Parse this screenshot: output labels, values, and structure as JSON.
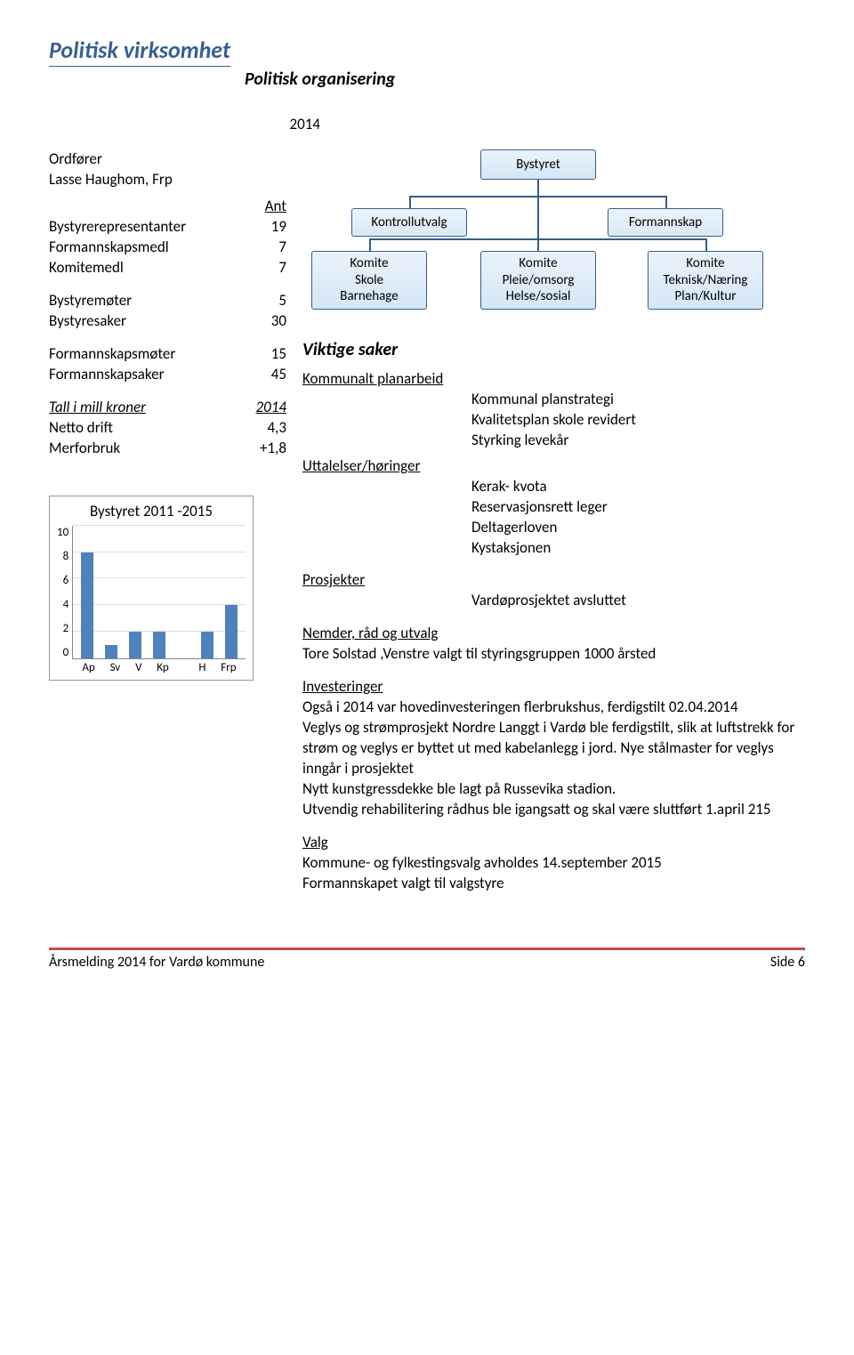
{
  "page": {
    "title": "Politisk virksomhet",
    "subtitle": "Politisk organisering",
    "year": "2014"
  },
  "left": {
    "ordforer_label": "Ordfører",
    "ordforer": "Lasse Haughom, Frp",
    "ant_header": "Ant",
    "rows1": [
      {
        "label": "Bystyrerepresentanter",
        "val": "19"
      },
      {
        "label": "Formannskapsmedl",
        "val": "7"
      },
      {
        "label": "Komitemedl",
        "val": "7"
      }
    ],
    "rows2": [
      {
        "label": "Bystyremøter",
        "val": "5"
      },
      {
        "label": "Bystyresaker",
        "val": "30"
      }
    ],
    "rows3": [
      {
        "label": "Formannskapsmøter",
        "val": "15"
      },
      {
        "label": "Formannskapsaker",
        "val": "45"
      }
    ],
    "econ_header": {
      "label": "Tall i mill kroner",
      "val": "2014"
    },
    "econ_rows": [
      {
        "label": "Netto drift",
        "val": "4,3"
      },
      {
        "label": "Merforbruk",
        "val": "+1,8"
      }
    ]
  },
  "chart": {
    "title": "Bystyret 2011 -2015",
    "ymax": 10,
    "ytick_step": 2,
    "yticks": [
      "10",
      "8",
      "6",
      "4",
      "2",
      "0"
    ],
    "categories": [
      "Ap",
      "Sv",
      "V",
      "Kp",
      "",
      "H",
      "Frp"
    ],
    "values": [
      8,
      1,
      2,
      2,
      0,
      2,
      4
    ],
    "bar_color": "#4f81bd",
    "grid_color": "#dddddd",
    "axis_color": "#888888"
  },
  "org": {
    "root": "Bystyret",
    "mid": [
      "Kontrollutvalg",
      "Formannskap"
    ],
    "leaves": [
      {
        "l1": "Komite",
        "l2": "Skole",
        "l3": "Barnehage"
      },
      {
        "l1": "Komite",
        "l2": "Pleie/omsorg",
        "l3": "Helse/sosial"
      },
      {
        "l1": "Komite",
        "l2": "Teknisk/Næring",
        "l3": "Plan/Kultur"
      }
    ],
    "box_border": "#385d8a",
    "box_fill_top": "#eaf3fb",
    "box_fill_bottom": "#d5e6f5"
  },
  "viktig": {
    "title": "Viktige saker",
    "kommunalt": {
      "header": "Kommunalt planarbeid",
      "items": [
        "Kommunal planstrategi",
        "Kvalitetsplan skole revidert",
        "Styrking levekår"
      ]
    },
    "uttalelser": {
      "header": "Uttalelser/høringer",
      "items": [
        "Kerak- kvota",
        "Reservasjonsrett leger",
        "Deltagerloven",
        "Kystaksjonen"
      ]
    },
    "prosjekter": {
      "header": "Prosjekter",
      "items": [
        "Vardøprosjektet avsluttet"
      ]
    },
    "nemder": {
      "header": "Nemder, råd og utvalg",
      "text": "Tore Solstad ,Venstre valgt til styringsgruppen 1000 årsted"
    },
    "investeringer": {
      "header": "Investeringer",
      "text": "Også i 2014 var hovedinvesteringen flerbrukshus, ferdigstilt 02.04.2014\nVeglys og strømprosjekt Nordre Langgt i Vardø ble ferdigstilt, slik at luftstrekk for strøm og veglys er byttet ut med kabelanlegg i jord. Nye stålmaster for veglys inngår i prosjektet\nNytt kunstgressdekke ble lagt på Russevika stadion.\nUtvendig rehabilitering rådhus ble igangsatt og skal være sluttført 1.april 215"
    },
    "valg": {
      "header": "Valg",
      "l1": "Kommune- og fylkestingsvalg avholdes 14.september 2015",
      "l2": "Formannskapet valgt til valgstyre"
    }
  },
  "footer": {
    "left": "Årsmelding 2014 for Vardø kommune",
    "right": "Side 6"
  },
  "colors": {
    "title": "#365f91",
    "footer_rule": "#c0504d"
  }
}
